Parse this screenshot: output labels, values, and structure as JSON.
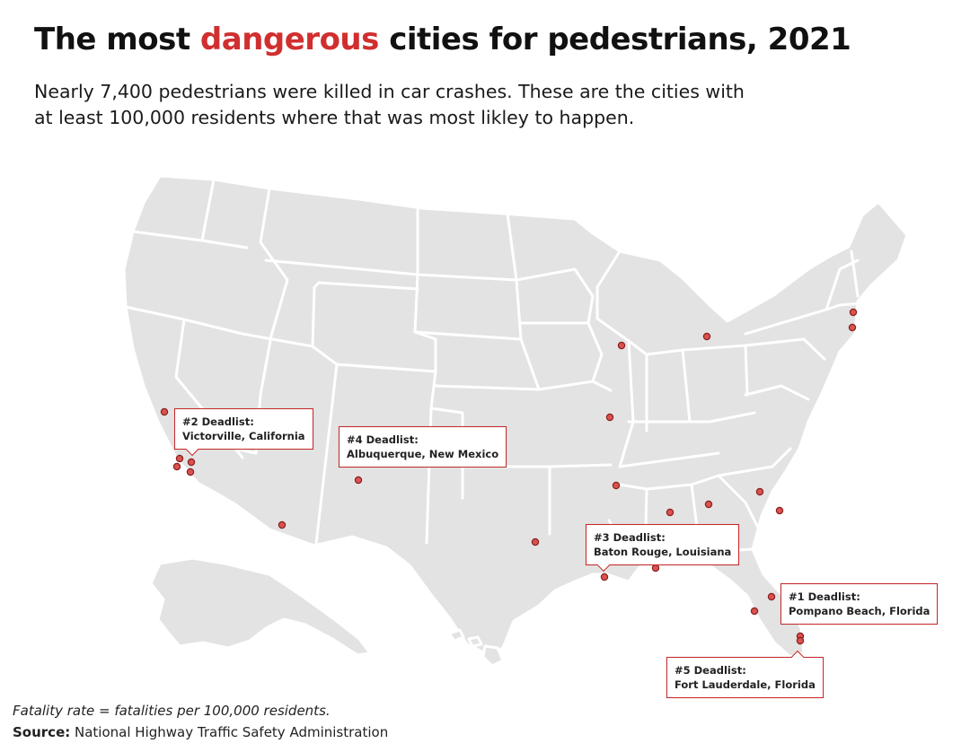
{
  "header": {
    "title_before": "The most ",
    "title_accent": "dangerous",
    "title_after": " cities for pedestrians, 2021",
    "subtitle": "Nearly 7,400 pedestrians were killed in car crashes. These are the cities with at least 100,000 residents where that was most likley to happen."
  },
  "colors": {
    "accent": "#d12f2f",
    "state_fill": "#e3e3e3",
    "state_border": "#ffffff",
    "marker": "#d9534f"
  },
  "callouts": [
    {
      "title": "#2 Deadlist:",
      "city": "Victorville, California"
    },
    {
      "title": "#4 Deadlist:",
      "city": "Albuquerque, New Mexico"
    },
    {
      "title": "#3 Deadlist:",
      "city": "Baton Rouge, Louisiana"
    },
    {
      "title": "#1 Deadlist:",
      "city": "Pompano Beach, Florida"
    },
    {
      "title": "#5 Deadlist:",
      "city": "Fort Lauderdale, Florida"
    }
  ],
  "footer": {
    "note": "Fatality rate = fatalities per 100,000 residents.",
    "source_label": "Source:",
    "source_text": " National Highway Traffic Safety Administration"
  }
}
